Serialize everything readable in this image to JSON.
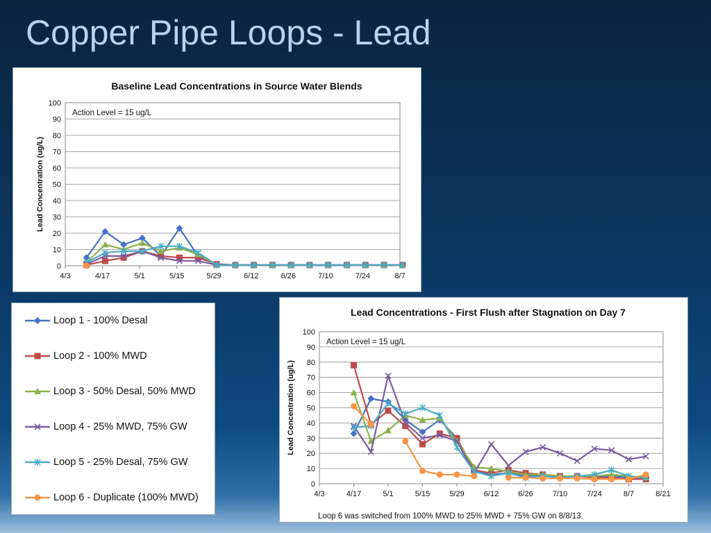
{
  "slide": {
    "title": "Copper Pipe Loops - Lead"
  },
  "legend": [
    {
      "name": "Loop 1 - 100% Desal",
      "color": "#4472c4",
      "marker": "diamond"
    },
    {
      "name": "Loop 2 - 100% MWD",
      "color": "#be4b48",
      "marker": "square"
    },
    {
      "name": "Loop 3 - 50% Desal, 50% MWD",
      "color": "#8db04c",
      "marker": "triangle"
    },
    {
      "name": "Loop 4 - 25% MWD, 75% GW",
      "color": "#7b5b9f",
      "marker": "x"
    },
    {
      "name": "Loop 5 - 25% Desal, 75% GW",
      "color": "#4aacc5",
      "marker": "star"
    },
    {
      "name": "Loop 6 - Duplicate (100% MWD)",
      "color": "#f79646",
      "marker": "circle"
    }
  ],
  "chart_data": [
    {
      "type": "line",
      "title": "Baseline Lead Concentrations in Source Water Blends",
      "ylabel": "Lead Concentration (ug/L)",
      "xlabel": "",
      "annotation": "Action Level = 15 ug/L",
      "ylim": [
        0,
        100
      ],
      "yticks": [
        0,
        10,
        20,
        30,
        40,
        50,
        60,
        70,
        80,
        90,
        100
      ],
      "x_range_days": [
        0,
        126
      ],
      "x_ticks": [
        {
          "day": 0,
          "label": "4/3"
        },
        {
          "day": 14,
          "label": "4/17"
        },
        {
          "day": 28,
          "label": "5/1"
        },
        {
          "day": 42,
          "label": "5/15"
        },
        {
          "day": 56,
          "label": "5/29"
        },
        {
          "day": 70,
          "label": "6/12"
        },
        {
          "day": 84,
          "label": "6/26"
        },
        {
          "day": 98,
          "label": "7/10"
        },
        {
          "day": 112,
          "label": "7/24"
        },
        {
          "day": 126,
          "label": "8/7"
        }
      ],
      "x_days": [
        8,
        15,
        22,
        29,
        36,
        43,
        50,
        57,
        64,
        71,
        78,
        85,
        92,
        99,
        106,
        113,
        120,
        127
      ],
      "series": [
        {
          "name": "Loop 1 - 100% Desal",
          "values": [
            5,
            21,
            13,
            17,
            6,
            23,
            6,
            1,
            0.5,
            0.5,
            0.5,
            0.5,
            0.5,
            0.5,
            0.5,
            0.5,
            0.5,
            0.5
          ]
        },
        {
          "name": "Loop 2 - 100% MWD",
          "values": [
            0.5,
            3,
            5,
            9,
            6,
            5,
            5,
            1,
            0.5,
            0.5,
            0.5,
            0.5,
            0.5,
            0.5,
            0.5,
            0.5,
            0.5,
            0.5
          ]
        },
        {
          "name": "Loop 3 - 50% Desal, 50% MWD",
          "values": [
            2,
            13,
            10,
            14,
            9,
            11,
            7,
            0.5,
            0.5,
            0.5,
            0.5,
            0.5,
            0.5,
            0.5,
            0.5,
            0.5,
            0.5,
            0.5
          ]
        },
        {
          "name": "Loop 4 - 25% MWD, 75% GW",
          "values": [
            1,
            6,
            6,
            9,
            5,
            3,
            3,
            0.5,
            0.5,
            0.5,
            0.5,
            0.5,
            0.5,
            0.5,
            0.5,
            0.5,
            0.5,
            0.5
          ]
        },
        {
          "name": "Loop 5 - 25% Desal, 75% GW",
          "values": [
            2,
            8,
            9,
            9,
            12,
            12,
            8,
            0.5,
            0.5,
            0.5,
            0.5,
            0.5,
            0.5,
            0.5,
            0.5,
            0.5,
            0.5,
            0.5
          ]
        },
        {
          "name": "Loop 6 - Duplicate (100% MWD)",
          "values": [
            0,
            null,
            null,
            null,
            null,
            null,
            null,
            null,
            null,
            null,
            null,
            null,
            null,
            null,
            null,
            null,
            null,
            null
          ]
        }
      ]
    },
    {
      "type": "line",
      "title": "Lead Concentrations - First Flush after Stagnation on Day 7",
      "ylabel": "Lead Concentration (ug/L)",
      "xlabel": "",
      "annotation": "Action Level = 15 ug/L",
      "footnote": "Loop 6 was switched from 100% MWD to 25%  MWD + 75% GW on 8/8/13.",
      "ylim": [
        0,
        100
      ],
      "yticks": [
        0,
        10,
        20,
        30,
        40,
        50,
        60,
        70,
        80,
        90,
        100
      ],
      "x_range_days": [
        0,
        140
      ],
      "x_ticks": [
        {
          "day": 0,
          "label": "4/3"
        },
        {
          "day": 14,
          "label": "4/17"
        },
        {
          "day": 28,
          "label": "5/1"
        },
        {
          "day": 42,
          "label": "5/15"
        },
        {
          "day": 56,
          "label": "5/29"
        },
        {
          "day": 70,
          "label": "6/12"
        },
        {
          "day": 84,
          "label": "6/26"
        },
        {
          "day": 98,
          "label": "7/10"
        },
        {
          "day": 112,
          "label": "7/24"
        },
        {
          "day": 126,
          "label": "8/7"
        },
        {
          "day": 140,
          "label": "8/21"
        }
      ],
      "x_days": [
        14,
        21,
        28,
        35,
        42,
        49,
        56,
        63,
        70,
        77,
        84,
        91,
        98,
        105,
        112,
        119,
        126,
        133
      ],
      "series": [
        {
          "name": "Loop 1 - 100% Desal",
          "values": [
            33,
            56,
            54,
            42,
            34,
            42,
            30,
            8,
            6,
            7,
            5,
            5,
            5,
            5,
            5,
            5,
            4,
            4
          ]
        },
        {
          "name": "Loop 2 - 100% MWD",
          "values": [
            78,
            39,
            48,
            38,
            26,
            33,
            30,
            9,
            7,
            9,
            7,
            6,
            5,
            5,
            4,
            4,
            3,
            3
          ]
        },
        {
          "name": "Loop 3 - 50% Desal, 50% MWD",
          "values": [
            60,
            28,
            35,
            45,
            42,
            43,
            28,
            11,
            10,
            8,
            6,
            6,
            5,
            5,
            5,
            6,
            5,
            4
          ]
        },
        {
          "name": "Loop 4 - 25% MWD, 75% GW",
          "values": [
            38,
            21,
            71,
            40,
            30,
            32,
            28,
            7,
            26,
            12,
            21,
            24,
            20,
            15,
            23,
            22,
            16,
            18
          ]
        },
        {
          "name": "Loop 5 - 25% Desal, 75% GW",
          "values": [
            37,
            38,
            53,
            46,
            50,
            45,
            24,
            8,
            5,
            7,
            4,
            5,
            4,
            5,
            6,
            9,
            5,
            4
          ]
        },
        {
          "name": "Loop 6 - Duplicate (100% MWD)",
          "values": [
            51,
            39,
            null,
            28,
            8.5,
            6,
            6,
            5,
            null,
            4,
            4,
            3.5,
            3.5,
            3.5,
            3,
            3,
            3,
            6
          ]
        }
      ]
    }
  ]
}
